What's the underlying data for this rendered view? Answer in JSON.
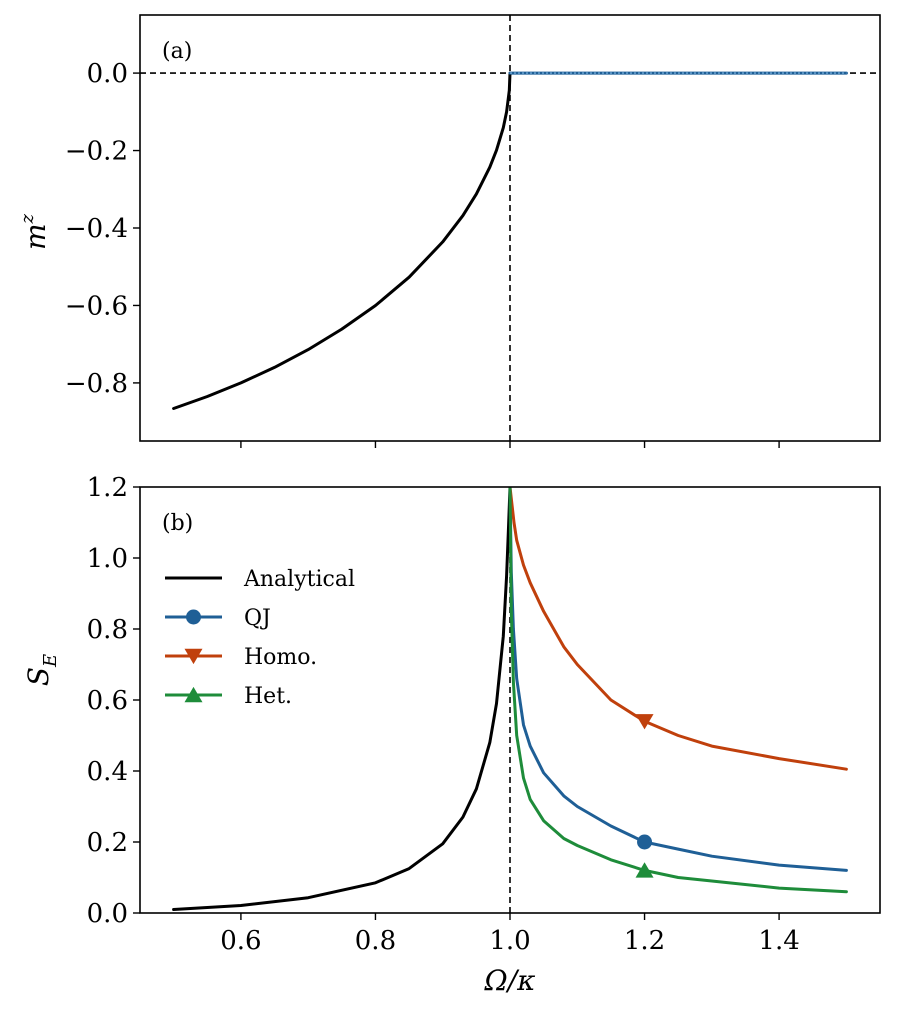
{
  "chart_data": [
    {
      "panel": "(a)",
      "type": "line",
      "ylabel": "m^z",
      "ylabel_main": "m",
      "ylabel_sup": "z",
      "xlim": [
        0.45,
        1.55
      ],
      "ylim": [
        -0.95,
        0.15
      ],
      "yticks": [
        0.0,
        -0.2,
        -0.4,
        -0.6,
        -0.8
      ],
      "ytick_labels": [
        "0.0",
        "−0.2",
        "−0.4",
        "−0.6",
        "−0.8"
      ],
      "xticks": [
        0.6,
        0.8,
        1.0,
        1.2,
        1.4
      ],
      "vline_x": 1.0,
      "hline_y": 0.0,
      "series": [
        {
          "name": "Analytical",
          "color": "#000000",
          "x": [
            0.5,
            0.55,
            0.6,
            0.65,
            0.7,
            0.75,
            0.8,
            0.85,
            0.9,
            0.93,
            0.95,
            0.97,
            0.98,
            0.99,
            0.995,
            0.999,
            1.0
          ],
          "y": [
            -0.866,
            -0.835,
            -0.8,
            -0.76,
            -0.714,
            -0.661,
            -0.6,
            -0.527,
            -0.436,
            -0.368,
            -0.312,
            -0.243,
            -0.199,
            -0.141,
            -0.1,
            -0.045,
            0.0
          ]
        },
        {
          "name": "QJ",
          "color": "#1f5f96",
          "x": [
            1.0,
            1.1,
            1.2,
            1.3,
            1.4,
            1.5
          ],
          "y": [
            0.0,
            0.0,
            0.0,
            0.0,
            0.0,
            0.0
          ]
        }
      ]
    },
    {
      "panel": "(b)",
      "type": "line",
      "xlabel": "Ω/κ",
      "ylabel": "S_E",
      "ylabel_main": "S",
      "ylabel_sub": "E",
      "xlim": [
        0.45,
        1.55
      ],
      "ylim": [
        0.0,
        1.2
      ],
      "yticks": [
        0.0,
        0.2,
        0.4,
        0.6,
        0.8,
        1.0,
        1.2
      ],
      "ytick_labels": [
        "0.0",
        "0.2",
        "0.4",
        "0.6",
        "0.8",
        "1.0",
        "1.2"
      ],
      "xticks": [
        0.6,
        0.8,
        1.0,
        1.2,
        1.4
      ],
      "xtick_labels": [
        "0.6",
        "0.8",
        "1.0",
        "1.2",
        "1.4"
      ],
      "vline_x": 1.0,
      "legend_position": "upper-left",
      "series": [
        {
          "name": "Analytical",
          "color": "#000000",
          "marker": "none",
          "x": [
            0.5,
            0.6,
            0.7,
            0.8,
            0.85,
            0.9,
            0.93,
            0.95,
            0.97,
            0.98,
            0.99,
            0.995,
            0.998,
            1.0
          ],
          "y": [
            0.01,
            0.021,
            0.043,
            0.085,
            0.125,
            0.195,
            0.27,
            0.35,
            0.48,
            0.59,
            0.78,
            0.95,
            1.1,
            1.2
          ]
        },
        {
          "name": "QJ",
          "color": "#1f5f96",
          "marker": "circle",
          "marker_x": 1.2,
          "x": [
            1.0,
            1.002,
            1.005,
            1.01,
            1.02,
            1.03,
            1.05,
            1.08,
            1.1,
            1.15,
            1.2,
            1.25,
            1.3,
            1.4,
            1.5
          ],
          "y": [
            1.2,
            0.96,
            0.8,
            0.66,
            0.53,
            0.47,
            0.395,
            0.33,
            0.3,
            0.245,
            0.2,
            0.18,
            0.16,
            0.135,
            0.12
          ]
        },
        {
          "name": "Homo.",
          "color": "#c0400c",
          "marker": "triangle-down",
          "marker_x": 1.2,
          "x": [
            1.0,
            1.003,
            1.006,
            1.01,
            1.02,
            1.03,
            1.05,
            1.08,
            1.1,
            1.15,
            1.2,
            1.25,
            1.3,
            1.4,
            1.5
          ],
          "y": [
            1.2,
            1.15,
            1.1,
            1.05,
            0.98,
            0.93,
            0.85,
            0.75,
            0.7,
            0.6,
            0.54,
            0.5,
            0.47,
            0.435,
            0.405
          ]
        },
        {
          "name": "Het.",
          "color": "#1e8c3a",
          "marker": "triangle-up",
          "marker_x": 1.2,
          "x": [
            1.0,
            1.002,
            1.005,
            1.01,
            1.02,
            1.03,
            1.05,
            1.08,
            1.1,
            1.15,
            1.2,
            1.25,
            1.3,
            1.4,
            1.5
          ],
          "y": [
            1.2,
            0.85,
            0.65,
            0.5,
            0.38,
            0.32,
            0.26,
            0.21,
            0.19,
            0.15,
            0.12,
            0.1,
            0.09,
            0.07,
            0.06
          ]
        }
      ]
    }
  ]
}
